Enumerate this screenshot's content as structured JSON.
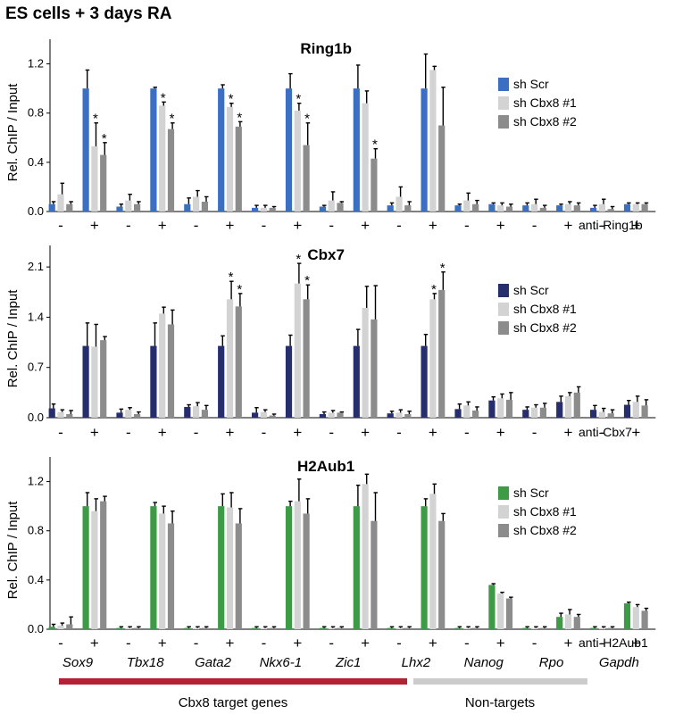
{
  "figure_title": "ES cells + 3 days RA",
  "genes": [
    "Sox9",
    "Tbx18",
    "Gata2",
    "Nkx6-1",
    "Zic1",
    "Lhx2",
    "Nanog",
    "Rpo",
    "Gapdh"
  ],
  "groups": [
    {
      "label": "Cbx8 target genes",
      "color": "#b22234"
    },
    {
      "label": "Non-targets",
      "color": "#cccccc"
    }
  ],
  "chart_data": [
    {
      "type": "bar",
      "title": "Ring1b",
      "ylabel": "Rel. ChIP / Input",
      "antibody_label": "anti-Ring1b",
      "ylim": [
        0,
        1.4
      ],
      "yticks": [
        "0.0",
        "0.4",
        "0.8",
        "1.2"
      ],
      "yticks_values": [
        0,
        0.4,
        0.8,
        1.2
      ],
      "categories": [
        "-",
        "+",
        "-",
        "+",
        "-",
        "+",
        "-",
        "+",
        "-",
        "+",
        "-",
        "+",
        "-",
        "+",
        "-",
        "+",
        "-",
        "+"
      ],
      "series": [
        {
          "name": "sh Scr",
          "color": "#3a6fc4",
          "values": [
            0.06,
            1.0,
            0.04,
            1.0,
            0.06,
            1.0,
            0.03,
            1.0,
            0.04,
            1.0,
            0.05,
            1.0,
            0.05,
            0.06,
            0.05,
            0.05,
            0.03,
            0.06
          ],
          "errors": [
            0.02,
            0.15,
            0.02,
            0.01,
            0.05,
            0.03,
            0.02,
            0.12,
            0.01,
            0.19,
            0.02,
            0.28,
            0.01,
            0.01,
            0.02,
            0.01,
            0.02,
            0.01
          ]
        },
        {
          "name": "sh Cbx8 #1",
          "color": "#d3d3d3",
          "values": [
            0.14,
            0.53,
            0.09,
            0.86,
            0.12,
            0.85,
            0.03,
            0.82,
            0.09,
            0.88,
            0.12,
            1.15,
            0.09,
            0.05,
            0.06,
            0.06,
            0.06,
            0.06
          ],
          "errors": [
            0.09,
            0.19,
            0.05,
            0.03,
            0.05,
            0.03,
            0.02,
            0.06,
            0.07,
            0.1,
            0.08,
            0.03,
            0.06,
            0.02,
            0.04,
            0.02,
            0.04,
            0.01
          ]
        },
        {
          "name": "sh Cbx8 #2",
          "color": "#8c8c8c",
          "values": [
            0.06,
            0.46,
            0.06,
            0.67,
            0.08,
            0.69,
            0.03,
            0.54,
            0.07,
            0.43,
            0.05,
            0.7,
            0.06,
            0.04,
            0.03,
            0.05,
            0.02,
            0.06
          ],
          "errors": [
            0.02,
            0.1,
            0.02,
            0.05,
            0.04,
            0.04,
            0.01,
            0.18,
            0.01,
            0.08,
            0.03,
            0.31,
            0.03,
            0.02,
            0.02,
            0.02,
            0.02,
            0.01
          ]
        }
      ],
      "significant": [
        [
          1,
          1
        ],
        [
          1,
          2
        ],
        [
          3,
          1
        ],
        [
          3,
          2
        ],
        [
          5,
          1
        ],
        [
          5,
          2
        ],
        [
          7,
          1
        ],
        [
          7,
          2
        ],
        [
          9,
          2
        ]
      ],
      "legend_position": "right"
    },
    {
      "type": "bar",
      "title": "Cbx7",
      "ylabel": "Rel. ChIP / Input",
      "antibody_label": "anti-Cbx7",
      "ylim": [
        0,
        2.4
      ],
      "yticks": [
        "0.0",
        "0.7",
        "1.4",
        "2.1"
      ],
      "yticks_values": [
        0,
        0.7,
        1.4,
        2.1
      ],
      "categories": [
        "-",
        "+",
        "-",
        "+",
        "-",
        "+",
        "-",
        "+",
        "-",
        "+",
        "-",
        "+",
        "-",
        "+",
        "-",
        "+",
        "-",
        "+"
      ],
      "series": [
        {
          "name": "sh Scr",
          "color": "#262e6e",
          "values": [
            0.13,
            1.0,
            0.07,
            1.0,
            0.15,
            1.0,
            0.07,
            1.0,
            0.05,
            1.0,
            0.06,
            1.0,
            0.12,
            0.24,
            0.11,
            0.22,
            0.11,
            0.18
          ],
          "errors": [
            0.06,
            0.32,
            0.05,
            0.32,
            0.03,
            0.14,
            0.07,
            0.15,
            0.03,
            0.23,
            0.03,
            0.16,
            0.07,
            0.05,
            0.04,
            0.08,
            0.06,
            0.06
          ]
        },
        {
          "name": "sh Cbx8 #1",
          "color": "#d3d3d3",
          "values": [
            0.08,
            0.99,
            0.11,
            1.45,
            0.16,
            1.65,
            0.08,
            1.87,
            0.07,
            1.53,
            0.07,
            1.65,
            0.17,
            0.27,
            0.14,
            0.3,
            0.08,
            0.22
          ],
          "errors": [
            0.03,
            0.31,
            0.03,
            0.09,
            0.05,
            0.25,
            0.03,
            0.28,
            0.03,
            0.3,
            0.04,
            0.08,
            0.05,
            0.06,
            0.04,
            0.05,
            0.05,
            0.08
          ]
        },
        {
          "name": "sh Cbx8 #2",
          "color": "#8c8c8c",
          "values": [
            0.05,
            1.08,
            0.05,
            1.3,
            0.11,
            1.55,
            0.03,
            1.65,
            0.07,
            1.37,
            0.05,
            1.78,
            0.1,
            0.25,
            0.14,
            0.35,
            0.06,
            0.17
          ],
          "errors": [
            0.05,
            0.05,
            0.03,
            0.2,
            0.06,
            0.18,
            0.02,
            0.2,
            0.01,
            0.47,
            0.04,
            0.25,
            0.05,
            0.1,
            0.06,
            0.08,
            0.05,
            0.08
          ]
        }
      ],
      "significant": [
        [
          5,
          1
        ],
        [
          5,
          2
        ],
        [
          7,
          1
        ],
        [
          7,
          2
        ],
        [
          11,
          1
        ],
        [
          11,
          2
        ]
      ],
      "legend_position": "right"
    },
    {
      "type": "bar",
      "title": "H2Aub1",
      "ylabel": "Rel. ChIP / Input",
      "antibody_label": "anti-H2Aub1",
      "ylim": [
        0,
        1.4
      ],
      "yticks": [
        "0.0",
        "0.4",
        "0.8",
        "1.2"
      ],
      "yticks_values": [
        0,
        0.4,
        0.8,
        1.2
      ],
      "categories": [
        "-",
        "+",
        "-",
        "+",
        "-",
        "+",
        "-",
        "+",
        "-",
        "+",
        "-",
        "+",
        "-",
        "+",
        "-",
        "+",
        "-",
        "+"
      ],
      "series": [
        {
          "name": "sh Scr",
          "color": "#3e9b45",
          "values": [
            0.02,
            1.0,
            0.01,
            1.0,
            0.01,
            1.0,
            0.01,
            1.0,
            0.01,
            1.0,
            0.01,
            1.0,
            0.01,
            0.36,
            0.01,
            0.1,
            0.01,
            0.21
          ],
          "errors": [
            0.02,
            0.11,
            0.01,
            0.03,
            0.01,
            0.1,
            0.01,
            0.04,
            0.01,
            0.17,
            0.01,
            0.06,
            0.01,
            0.01,
            0.01,
            0.03,
            0.01,
            0.01
          ]
        },
        {
          "name": "sh Cbx8 #1",
          "color": "#d3d3d3",
          "values": [
            0.03,
            0.96,
            0.01,
            0.94,
            0.01,
            0.99,
            0.01,
            1.04,
            0.01,
            1.18,
            0.01,
            1.1,
            0.01,
            0.29,
            0.01,
            0.12,
            0.01,
            0.18
          ],
          "errors": [
            0.02,
            0.1,
            0.01,
            0.06,
            0.01,
            0.12,
            0.01,
            0.18,
            0.01,
            0.08,
            0.01,
            0.08,
            0.01,
            0.01,
            0.01,
            0.04,
            0.01,
            0.02
          ]
        },
        {
          "name": "sh Cbx8 #2",
          "color": "#8c8c8c",
          "values": [
            0.04,
            1.04,
            0.01,
            0.86,
            0.01,
            0.86,
            0.01,
            0.94,
            0.01,
            0.88,
            0.01,
            0.88,
            0.01,
            0.25,
            0.01,
            0.1,
            0.01,
            0.15
          ],
          "errors": [
            0.06,
            0.04,
            0.01,
            0.1,
            0.01,
            0.12,
            0.01,
            0.12,
            0.01,
            0.23,
            0.01,
            0.06,
            0.01,
            0.01,
            0.01,
            0.02,
            0.01,
            0.02
          ]
        }
      ],
      "significant": [],
      "legend_position": "right"
    }
  ]
}
